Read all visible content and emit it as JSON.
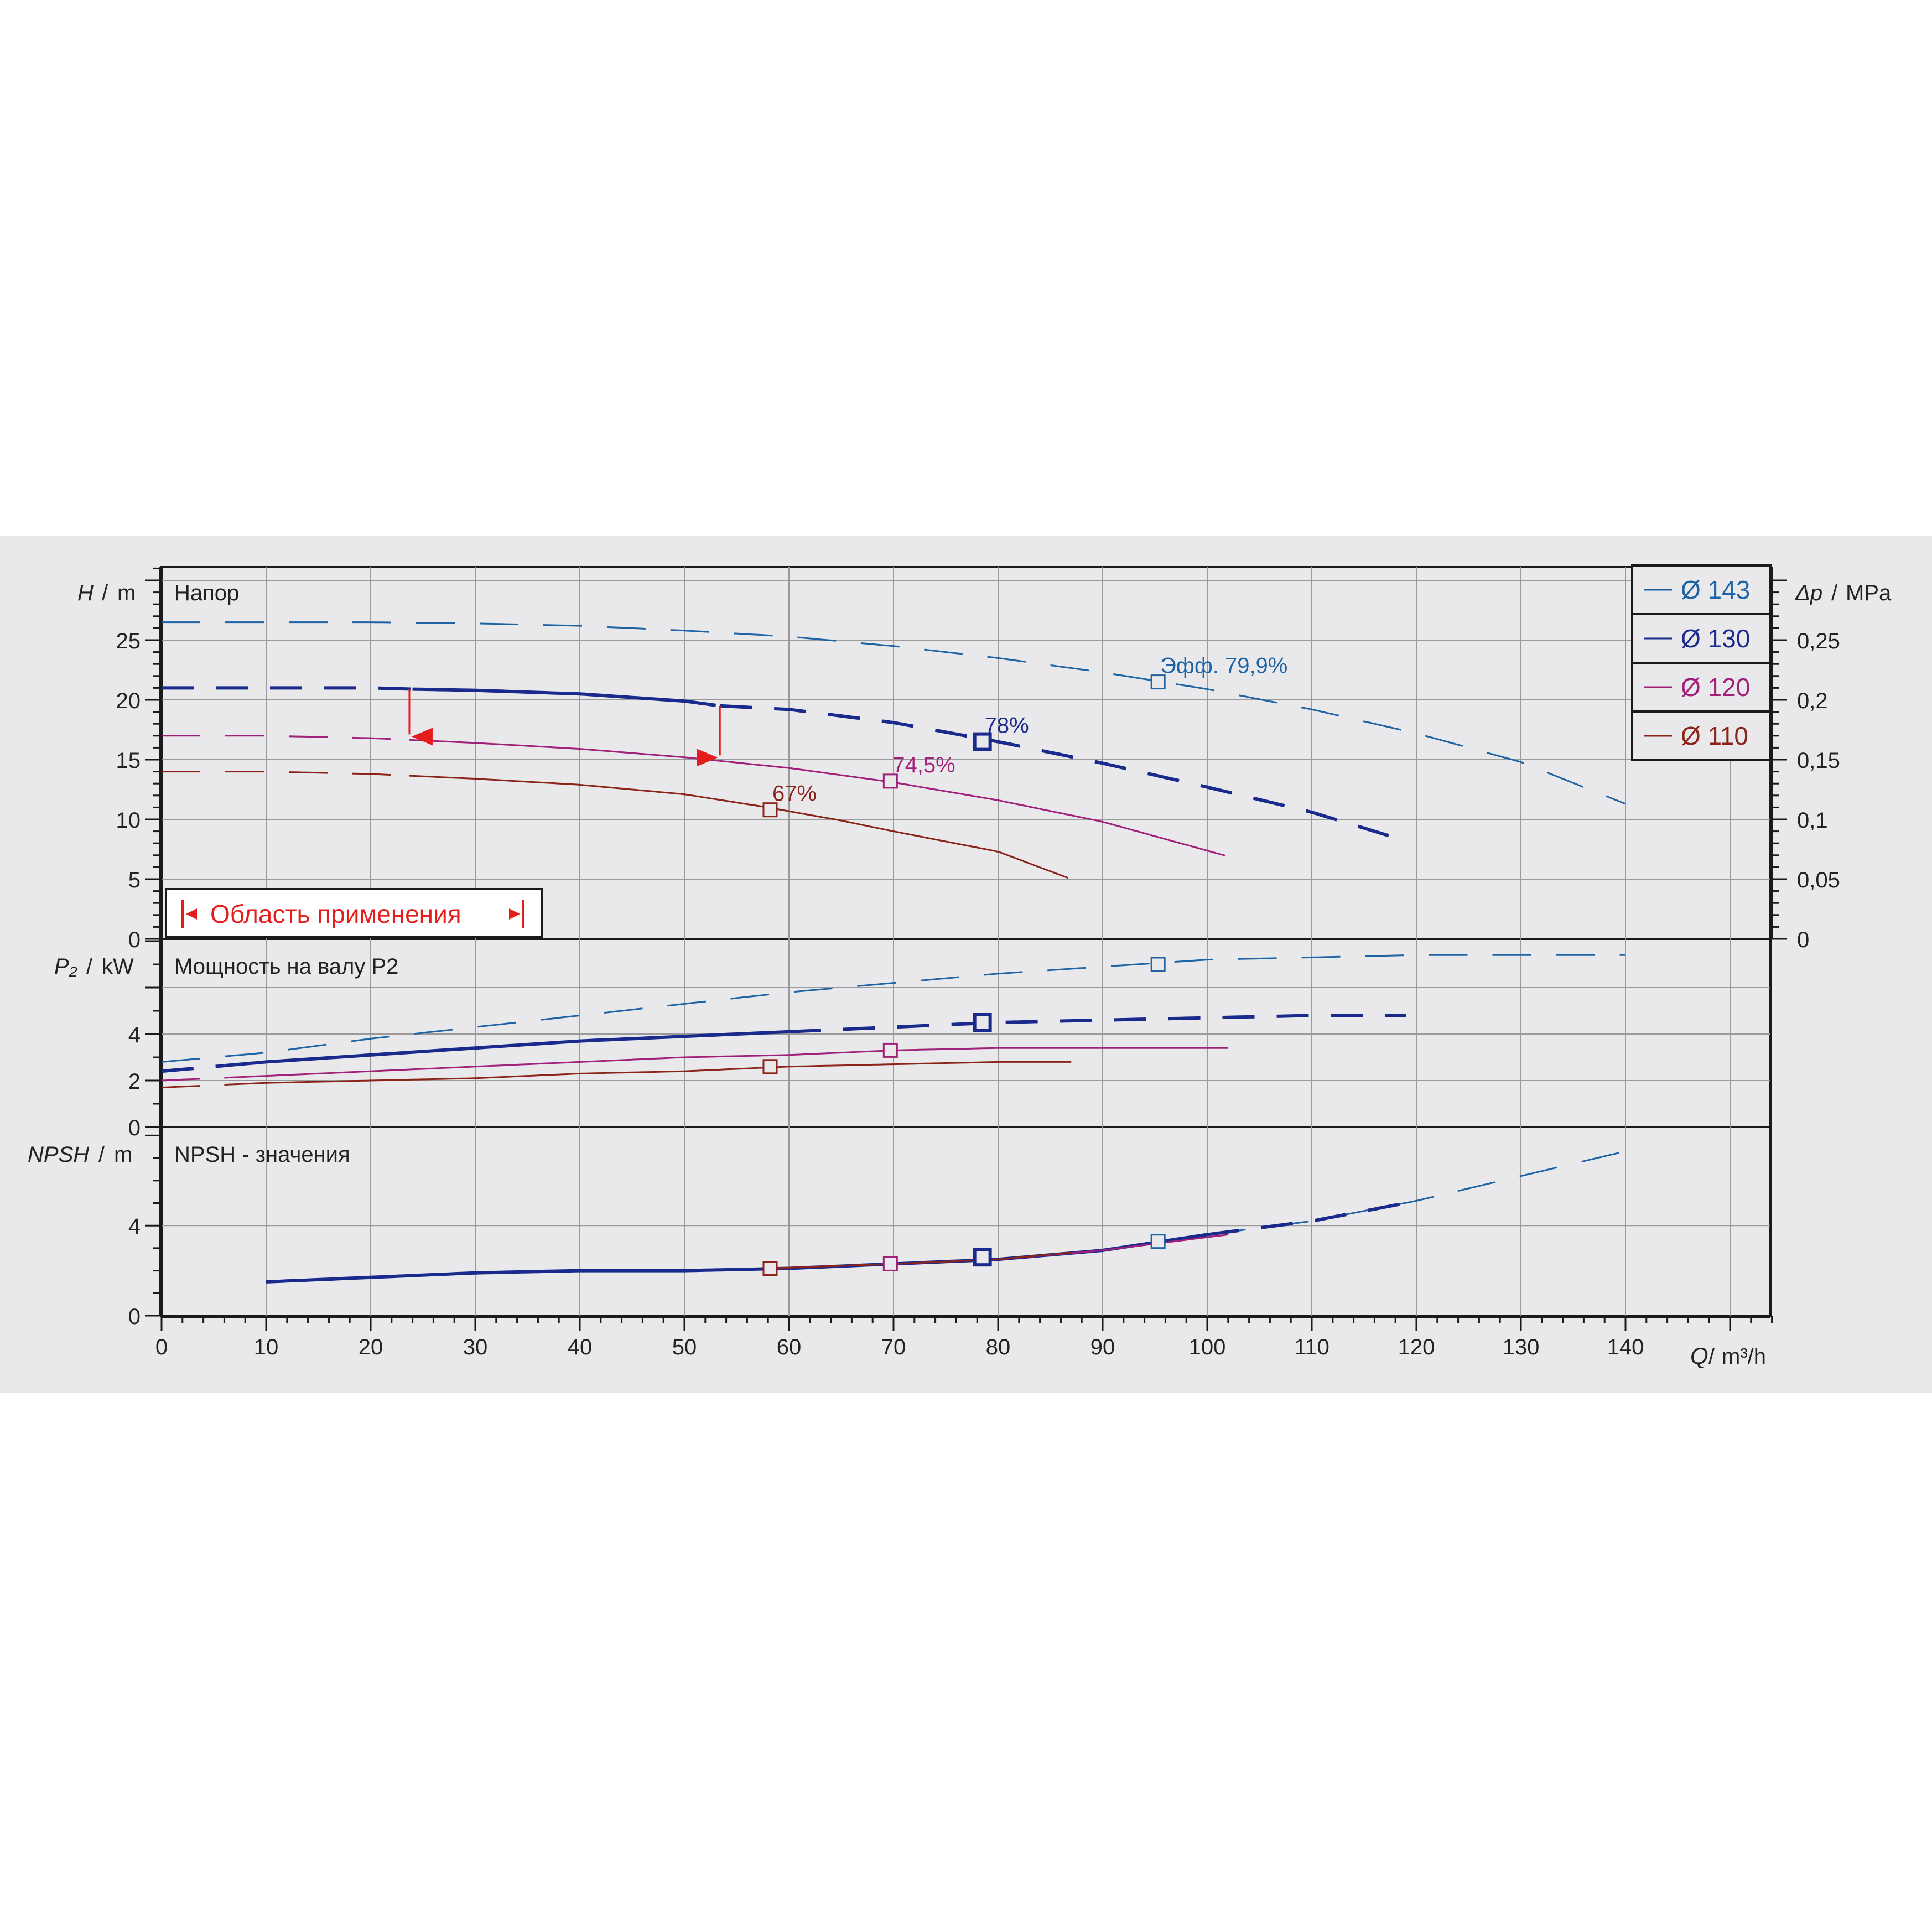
{
  "chart_data": {
    "type": "line",
    "x_axis": {
      "label": "Q",
      "unit": "m³/h",
      "range": [
        0,
        154
      ],
      "ticks": [
        0,
        10,
        20,
        30,
        40,
        50,
        60,
        70,
        80,
        90,
        100,
        110,
        120,
        130,
        140
      ]
    },
    "legend": {
      "position": "top-right",
      "entries": [
        {
          "label": "Ø 143",
          "color": "#1e64a5"
        },
        {
          "label": "Ø 130",
          "color": "#1a2a8c"
        },
        {
          "label": "Ø 120",
          "color": "#a0207a"
        },
        {
          "label": "Ø 110",
          "color": "#8b2418"
        }
      ]
    },
    "panels": {
      "head": {
        "axis_label": "H",
        "unit": "m",
        "title": "Напор",
        "range": [
          0,
          31
        ],
        "ticks": [
          "0",
          "5",
          "10",
          "15",
          "20",
          "25"
        ],
        "right_axis": {
          "label": "Δp",
          "unit": "MPa",
          "ticks": [
            "0",
            "0,05",
            "0,1",
            "0,15",
            "0,2",
            "0,25"
          ]
        },
        "application_range": {
          "label": "Область применения",
          "q_min": 23.7,
          "q_max": 53.4
        },
        "curves": [
          {
            "name": "Ø 143",
            "color": "#1e64a5",
            "x": [
              0,
              10,
              20,
              30,
              40,
              50,
              60,
              70,
              80,
              90,
              100,
              110,
              120,
              130,
              140
            ],
            "y": [
              26.5,
              26.5,
              26.5,
              26.4,
              26.2,
              25.8,
              25.3,
              24.5,
              23.5,
              22.3,
              20.9,
              19.2,
              17.2,
              14.8,
              11.3
            ]
          },
          {
            "name": "Ø 130",
            "color": "#1a2a8c",
            "x": [
              0,
              10,
              20,
              24,
              30,
              40,
              50,
              53.4,
              60,
              70,
              80,
              90,
              100,
              110,
              119
            ],
            "y": [
              21,
              21,
              21,
              20.9,
              20.8,
              20.5,
              19.9,
              19.5,
              19.2,
              18.1,
              16.5,
              14.7,
              12.7,
              10.6,
              8.2
            ]
          },
          {
            "name": "Ø 120",
            "color": "#a0207a",
            "x": [
              0,
              10,
              20,
              30,
              40,
              50,
              60,
              70,
              80,
              90,
              102
            ],
            "y": [
              17,
              17,
              16.8,
              16.4,
              15.9,
              15.2,
              14.3,
              13.1,
              11.6,
              9.8,
              6.9
            ]
          },
          {
            "name": "Ø 110",
            "color": "#8b2418",
            "x": [
              0,
              10,
              20,
              30,
              40,
              50,
              58,
              65,
              70,
              80,
              87
            ],
            "y": [
              14,
              14,
              13.8,
              13.4,
              12.9,
              12.1,
              11,
              9.9,
              9,
              7.3,
              5
            ]
          }
        ],
        "bep_points": [
          {
            "curve": "Ø 143",
            "x": 95.3,
            "y": 21.5,
            "label": "Эфф.  79,9%"
          },
          {
            "curve": "Ø 130",
            "x": 78.5,
            "y": 16.5,
            "label": "78%"
          },
          {
            "curve": "Ø 120",
            "x": 69.7,
            "y": 13.2,
            "label": "74,5%"
          },
          {
            "curve": "Ø 110",
            "x": 58.2,
            "y": 10.8,
            "label": "67%"
          }
        ]
      },
      "power": {
        "axis_label": "P₂",
        "unit": "kW",
        "title": "Мощность на валу P2",
        "range": [
          0,
          8
        ],
        "ticks": [
          "0",
          "2",
          "4"
        ],
        "curves": [
          {
            "name": "Ø 143",
            "color": "#1e64a5",
            "x": [
              0,
              10,
              20,
              30,
              40,
              50,
              60,
              70,
              80,
              90,
              100,
              110,
              120,
              130,
              140
            ],
            "y": [
              2.8,
              3.2,
              3.8,
              4.3,
              4.8,
              5.3,
              5.8,
              6.2,
              6.6,
              6.9,
              7.2,
              7.3,
              7.4,
              7.4,
              7.4
            ]
          },
          {
            "name": "Ø 130",
            "color": "#1a2a8c",
            "x": [
              0,
              10,
              20,
              30,
              40,
              50,
              60,
              70,
              80,
              90,
              100,
              110,
              119
            ],
            "y": [
              2.4,
              2.8,
              3.1,
              3.4,
              3.7,
              3.9,
              4.1,
              4.3,
              4.5,
              4.6,
              4.7,
              4.8,
              4.8
            ]
          },
          {
            "name": "Ø 120",
            "color": "#a0207a",
            "x": [
              0,
              10,
              20,
              30,
              40,
              50,
              60,
              70,
              80,
              90,
              102
            ],
            "y": [
              2.0,
              2.2,
              2.4,
              2.6,
              2.8,
              3.0,
              3.1,
              3.3,
              3.4,
              3.4,
              3.4
            ]
          },
          {
            "name": "Ø 110",
            "color": "#8b2418",
            "x": [
              0,
              10,
              20,
              30,
              40,
              50,
              60,
              70,
              80,
              87
            ],
            "y": [
              1.7,
              1.9,
              2.0,
              2.1,
              2.3,
              2.4,
              2.6,
              2.7,
              2.8,
              2.8
            ]
          }
        ],
        "bep_points": [
          {
            "curve": "Ø 143",
            "x": 95.3,
            "y": 7.0
          },
          {
            "curve": "Ø 130",
            "x": 78.5,
            "y": 4.5
          },
          {
            "curve": "Ø 120",
            "x": 69.7,
            "y": 3.3
          },
          {
            "curve": "Ø 110",
            "x": 58.2,
            "y": 2.6
          }
        ]
      },
      "npsh": {
        "axis_label": "NPSH",
        "unit": "m",
        "title": "NPSH - значения",
        "range": [
          0,
          8
        ],
        "ticks": [
          "0",
          "4"
        ],
        "curves": [
          {
            "name": "Ø 143",
            "color": "#1e64a5",
            "x": [
              10,
              20,
              30,
              40,
              50,
              60,
              70,
              80,
              90,
              100,
              110,
              120,
              130,
              140
            ],
            "y": [
              1.5,
              1.7,
              1.9,
              2.0,
              2.0,
              2.1,
              2.3,
              2.5,
              2.9,
              3.6,
              4.2,
              5.1,
              6.2,
              7.3
            ]
          },
          {
            "name": "Ø 130",
            "color": "#1a2a8c",
            "x": [
              10,
              20,
              30,
              40,
              50,
              60,
              70,
              80,
              90,
              100,
              110,
              119
            ],
            "y": [
              1.5,
              1.7,
              1.9,
              2.0,
              2.0,
              2.1,
              2.3,
              2.5,
              2.9,
              3.6,
              4.2,
              5.0
            ]
          },
          {
            "name": "Ø 120",
            "color": "#a0207a",
            "x": [
              58,
              70,
              80,
              90,
              102
            ],
            "y": [
              2.1,
              2.3,
              2.5,
              2.9,
              3.6
            ]
          },
          {
            "name": "Ø 110",
            "color": "#8b2418",
            "x": [
              58,
              70,
              80,
              87
            ],
            "y": [
              2.1,
              2.3,
              2.5,
              2.8
            ]
          }
        ],
        "bep_points": [
          {
            "curve": "Ø 143",
            "x": 95.3,
            "y": 3.3
          },
          {
            "curve": "Ø 130",
            "x": 78.5,
            "y": 2.6
          },
          {
            "curve": "Ø 120",
            "x": 69.7,
            "y": 2.3
          },
          {
            "curve": "Ø 110",
            "x": 58.2,
            "y": 2.1
          }
        ]
      }
    }
  }
}
